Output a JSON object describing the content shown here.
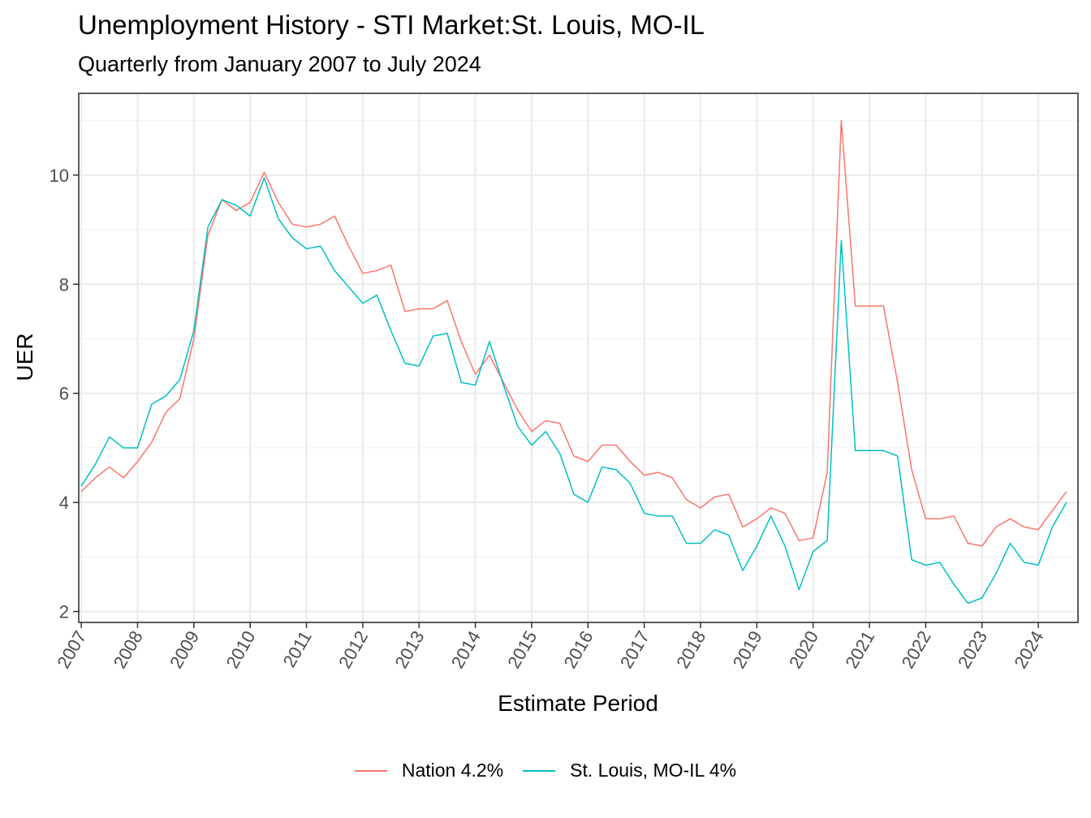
{
  "chart_data": {
    "type": "line",
    "title": "Unemployment History - STI Market:St. Louis, MO-IL",
    "subtitle": "Quarterly from January 2007 to July 2024",
    "xlabel": "Estimate Period",
    "ylabel": "UER",
    "xlim": [
      "2006-12-15",
      "2024-09-15"
    ],
    "ylim": [
      1.8,
      11.5
    ],
    "yticks": [
      2,
      4,
      6,
      8,
      10
    ],
    "xticks": [
      "2007",
      "2008",
      "2009",
      "2010",
      "2011",
      "2012",
      "2013",
      "2014",
      "2015",
      "2016",
      "2017",
      "2018",
      "2019",
      "2020",
      "2021",
      "2022",
      "2023",
      "2024"
    ],
    "grid": true,
    "legend_position": "bottom",
    "x": [
      "2007-01",
      "2007-04",
      "2007-07",
      "2007-10",
      "2008-01",
      "2008-04",
      "2008-07",
      "2008-10",
      "2009-01",
      "2009-04",
      "2009-07",
      "2009-10",
      "2010-01",
      "2010-04",
      "2010-07",
      "2010-10",
      "2011-01",
      "2011-04",
      "2011-07",
      "2011-10",
      "2012-01",
      "2012-04",
      "2012-07",
      "2012-10",
      "2013-01",
      "2013-04",
      "2013-07",
      "2013-10",
      "2014-01",
      "2014-04",
      "2014-07",
      "2014-10",
      "2015-01",
      "2015-04",
      "2015-07",
      "2015-10",
      "2016-01",
      "2016-04",
      "2016-07",
      "2016-10",
      "2017-01",
      "2017-04",
      "2017-07",
      "2017-10",
      "2018-01",
      "2018-04",
      "2018-07",
      "2018-10",
      "2019-01",
      "2019-04",
      "2019-07",
      "2019-10",
      "2020-01",
      "2020-04",
      "2020-07",
      "2020-10",
      "2021-01",
      "2021-04",
      "2021-07",
      "2021-10",
      "2022-01",
      "2022-04",
      "2022-07",
      "2022-10",
      "2023-01",
      "2023-04",
      "2023-07",
      "2023-10",
      "2024-01",
      "2024-04",
      "2024-07"
    ],
    "series": [
      {
        "name": "Nation 4.2%",
        "color": "#f8766d",
        "values": [
          4.2,
          4.45,
          4.65,
          4.45,
          4.75,
          5.1,
          5.65,
          5.9,
          7.0,
          8.9,
          9.55,
          9.35,
          9.5,
          10.05,
          9.5,
          9.1,
          9.05,
          9.1,
          9.25,
          8.7,
          8.2,
          8.25,
          8.35,
          7.5,
          7.55,
          7.55,
          7.7,
          6.95,
          6.35,
          6.7,
          6.2,
          5.7,
          5.3,
          5.5,
          5.45,
          4.85,
          4.75,
          5.05,
          5.05,
          4.75,
          4.5,
          4.55,
          4.45,
          4.05,
          3.9,
          4.1,
          4.15,
          3.55,
          3.7,
          3.9,
          3.8,
          3.3,
          3.35,
          4.55,
          11.0,
          7.6,
          7.6,
          7.6,
          6.2,
          4.6,
          3.7,
          3.7,
          3.75,
          3.25,
          3.2,
          3.55,
          3.7,
          3.55,
          3.5,
          3.85,
          4.2
        ]
      },
      {
        "name": "St. Louis, MO-IL 4%",
        "color": "#00bfc4",
        "values": [
          4.3,
          4.7,
          5.2,
          5.0,
          5.0,
          5.8,
          5.95,
          6.25,
          7.15,
          9.05,
          9.55,
          9.45,
          9.25,
          9.95,
          9.2,
          8.85,
          8.65,
          8.7,
          8.25,
          7.95,
          7.65,
          7.8,
          7.15,
          6.55,
          6.5,
          7.05,
          7.1,
          6.2,
          6.15,
          6.95,
          6.15,
          5.4,
          5.05,
          5.3,
          4.9,
          4.15,
          4.0,
          4.65,
          4.6,
          4.35,
          3.8,
          3.75,
          3.75,
          3.25,
          3.25,
          3.5,
          3.4,
          2.75,
          3.2,
          3.75,
          3.2,
          2.4,
          3.1,
          3.3,
          8.8,
          4.95,
          4.95,
          4.95,
          4.85,
          2.95,
          2.85,
          2.9,
          2.5,
          2.15,
          2.25,
          2.7,
          3.25,
          2.9,
          2.85,
          3.55,
          4.0
        ]
      }
    ]
  }
}
